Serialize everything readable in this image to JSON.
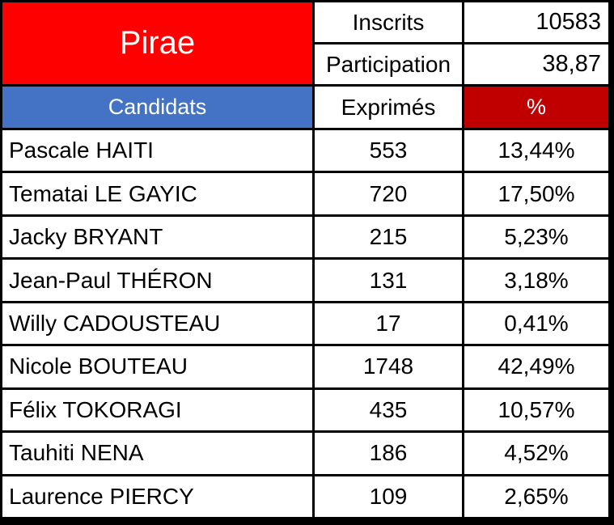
{
  "title": {
    "commune": "Pirae"
  },
  "summary": {
    "inscrits_label": "Inscrits",
    "inscrits_value": "10583",
    "participation_label": "Participation",
    "participation_value": "38,87"
  },
  "header": {
    "candidats": "Candidats",
    "exprimes": "Exprimés",
    "percent": "%"
  },
  "rows": [
    {
      "candidate": "Pascale HAITI",
      "votes": "553",
      "pct": "13,44%"
    },
    {
      "candidate": "Tematai LE GAYIC",
      "votes": "720",
      "pct": "17,50%"
    },
    {
      "candidate": "Jacky BRYANT",
      "votes": "215",
      "pct": "5,23%"
    },
    {
      "candidate": "Jean-Paul THÉRON",
      "votes": "131",
      "pct": "3,18%"
    },
    {
      "candidate": "Willy CADOUSTEAU",
      "votes": "17",
      "pct": "0,41%"
    },
    {
      "candidate": "Nicole BOUTEAU",
      "votes": "1748",
      "pct": "42,49%"
    },
    {
      "candidate": "Félix TOKORAGI",
      "votes": "435",
      "pct": "10,57%"
    },
    {
      "candidate": "Tauhiti NENA",
      "votes": "186",
      "pct": "4,52%"
    },
    {
      "candidate": "Laurence PIERCY",
      "votes": "109",
      "pct": "2,65%"
    }
  ],
  "colors": {
    "red": "#FF0000",
    "blue": "#4472C4",
    "dark_red": "#C00000",
    "border": "#000000",
    "cell_bg": "#FFFFFF"
  },
  "chart_data": {
    "type": "table",
    "title": "Pirae",
    "summary": {
      "Inscrits": 10583,
      "Participation": 38.87
    },
    "columns": [
      "Candidats",
      "Exprimés",
      "%"
    ],
    "rows": [
      [
        "Pascale HAITI",
        553,
        13.44
      ],
      [
        "Tematai LE GAYIC",
        720,
        17.5
      ],
      [
        "Jacky BRYANT",
        215,
        5.23
      ],
      [
        "Jean-Paul THÉRON",
        131,
        3.18
      ],
      [
        "Willy CADOUSTEAU",
        17,
        0.41
      ],
      [
        "Nicole BOUTEAU",
        1748,
        42.49
      ],
      [
        "Félix TOKORAGI",
        435,
        10.57
      ],
      [
        "Tauhiti NENA",
        186,
        4.52
      ],
      [
        "Laurence PIERCY",
        109,
        2.65
      ]
    ]
  }
}
